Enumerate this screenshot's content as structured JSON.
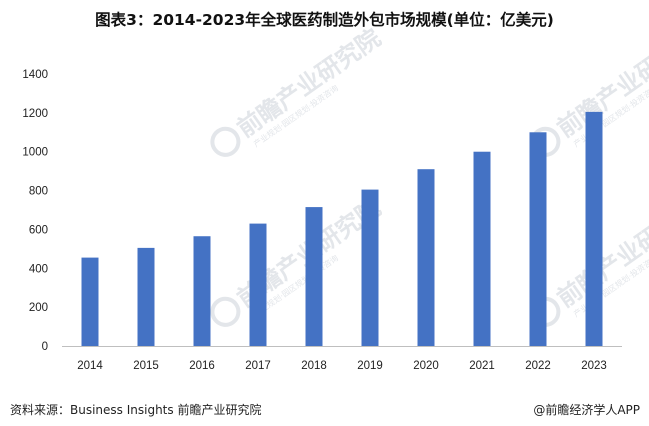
{
  "page": {
    "footer": {
      "source": "资料来源：Business Insights 前瞻产业研究院",
      "brand": "@前瞻经济学人APP"
    },
    "watermark": {
      "text": "前瞻产业研究院",
      "subtext": "产业规划·园区规划·投资咨询"
    }
  },
  "chart_data": {
    "type": "bar",
    "title": "图表3：2014-2023年全球医药制造外包市场规模(单位：亿美元)",
    "xlabel": "",
    "ylabel": "",
    "categories": [
      "2014",
      "2015",
      "2016",
      "2017",
      "2018",
      "2019",
      "2020",
      "2021",
      "2022",
      "2023"
    ],
    "values": [
      455,
      505,
      565,
      630,
      715,
      805,
      910,
      1000,
      1100,
      1205
    ],
    "ylim": [
      0,
      1400
    ],
    "yticks": [
      0,
      200,
      400,
      600,
      800,
      1000,
      1200,
      1400
    ],
    "grid": false,
    "legend": "none",
    "bar_color": "#4472C4"
  }
}
